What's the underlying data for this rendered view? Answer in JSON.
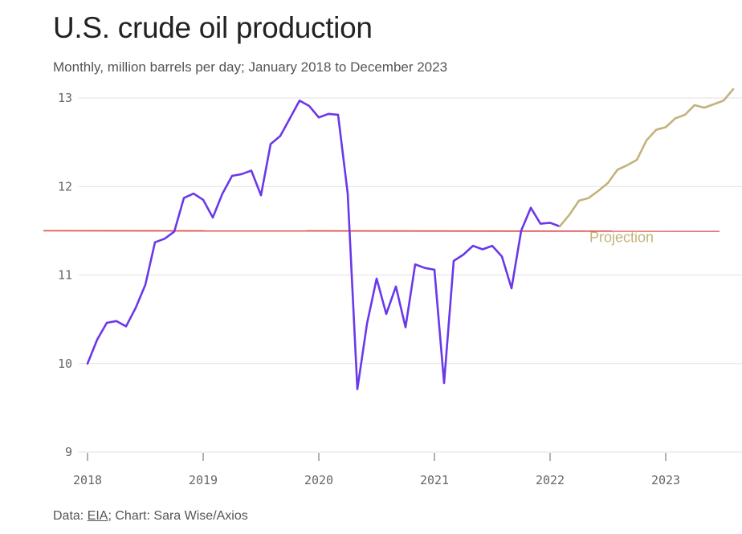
{
  "title": "U.S. crude oil production",
  "subtitle": "Monthly, million barrels per day; January 2018 to December 2023",
  "source": {
    "prefix": "Data: ",
    "link_text": "EIA",
    "suffix": "; Chart: Sara Wise/Axios"
  },
  "colors": {
    "historical": "#6a38ea",
    "projection": "#c2b37a",
    "reference_line": "#e0413f",
    "grid": "#e2e2e2"
  },
  "chart_data": {
    "type": "line",
    "title": "U.S. crude oil production",
    "subtitle": "Monthly, million barrels per day; January 2018 to December 2023",
    "xlabel": "",
    "ylabel": "",
    "ylim": [
      9,
      13
    ],
    "yticks": [
      "9",
      "10",
      "11",
      "12",
      "13"
    ],
    "xticks": [
      "2018",
      "2019",
      "2020",
      "2021",
      "2022",
      "2023"
    ],
    "grid": true,
    "reference_line": {
      "y": 11.5,
      "label": "Projection"
    },
    "series": [
      {
        "kind": "historical",
        "x": [
          "2018-01",
          "2018-02",
          "2018-03",
          "2018-04",
          "2018-05",
          "2018-06",
          "2018-07",
          "2018-08",
          "2018-09",
          "2018-10",
          "2018-11",
          "2018-12",
          "2019-01",
          "2019-02",
          "2019-03",
          "2019-04",
          "2019-05",
          "2019-06",
          "2019-07",
          "2019-08",
          "2019-09",
          "2019-10",
          "2019-11",
          "2019-12",
          "2020-01",
          "2020-02",
          "2020-03",
          "2020-04",
          "2020-05",
          "2020-06",
          "2020-07",
          "2020-08",
          "2020-09",
          "2020-10",
          "2020-11",
          "2020-12",
          "2021-01",
          "2021-02",
          "2021-03",
          "2021-04",
          "2021-05",
          "2021-06",
          "2021-07",
          "2021-08",
          "2021-09",
          "2021-10",
          "2021-11",
          "2021-12",
          "2022-01",
          "2022-02"
        ],
        "values": [
          10.0,
          10.27,
          10.46,
          10.48,
          10.42,
          10.63,
          10.89,
          11.37,
          11.41,
          11.49,
          11.87,
          11.92,
          11.85,
          11.65,
          11.92,
          12.12,
          12.14,
          12.18,
          11.9,
          12.48,
          12.57,
          12.77,
          12.97,
          12.91,
          12.78,
          12.82,
          12.81,
          11.92,
          9.71,
          10.45,
          10.96,
          10.56,
          10.87,
          10.41,
          11.12,
          11.08,
          11.06,
          9.78,
          11.16,
          11.23,
          11.33,
          11.29,
          11.33,
          11.21,
          10.85,
          11.5,
          11.76,
          11.58,
          11.59,
          11.55
        ]
      },
      {
        "kind": "projection",
        "x": [
          "2022-02",
          "2022-03",
          "2022-04",
          "2022-05",
          "2022-06",
          "2022-07",
          "2022-08",
          "2022-09",
          "2022-10",
          "2022-11",
          "2022-12",
          "2023-01",
          "2023-02",
          "2023-03",
          "2023-04",
          "2023-05",
          "2023-06",
          "2023-07",
          "2023-08"
        ],
        "values": [
          11.55,
          11.68,
          11.84,
          11.87,
          11.95,
          12.04,
          12.19,
          12.24,
          12.3,
          12.52,
          12.64,
          12.67,
          12.77,
          12.81,
          12.92,
          12.89,
          12.93,
          12.97,
          13.1
        ]
      }
    ]
  }
}
